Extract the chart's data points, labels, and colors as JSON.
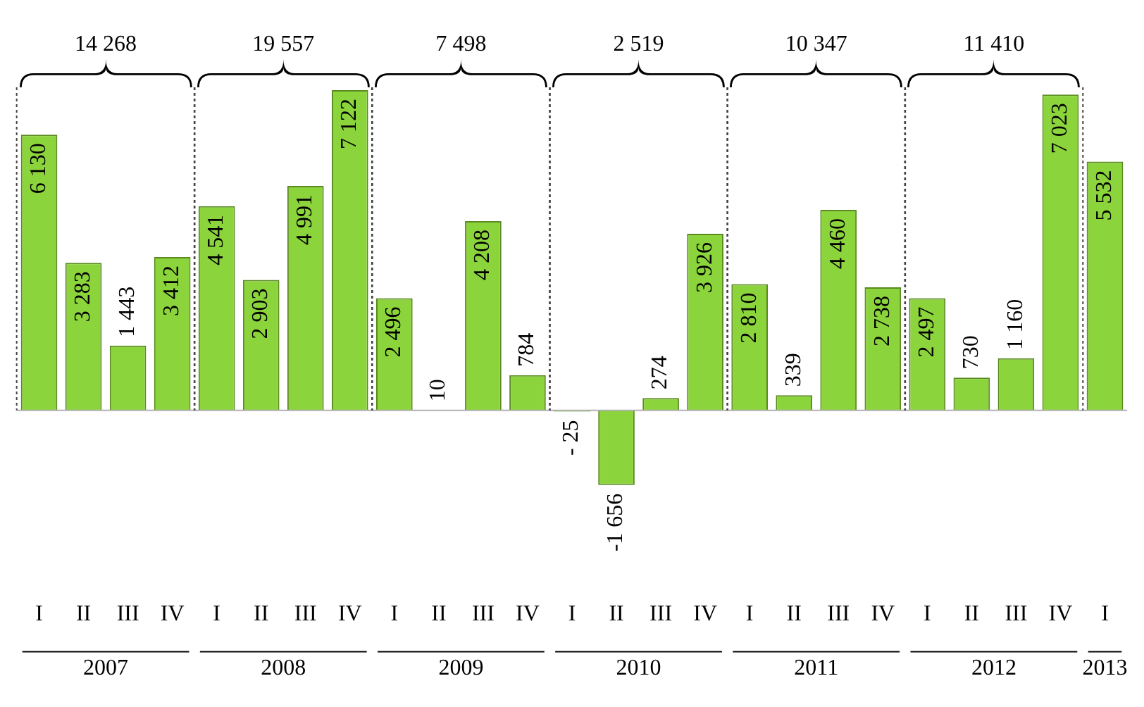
{
  "chart_data": {
    "type": "bar",
    "categories": [
      "I",
      "II",
      "III",
      "IV",
      "I",
      "II",
      "III",
      "IV",
      "I",
      "II",
      "III",
      "IV",
      "I",
      "II",
      "III",
      "IV",
      "I",
      "II",
      "III",
      "IV",
      "I",
      "II",
      "III",
      "IV",
      "I"
    ],
    "values": [
      6130,
      3283,
      1443,
      3412,
      4541,
      2903,
      4991,
      7122,
      2496,
      10,
      4208,
      784,
      -25,
      -1656,
      274,
      3926,
      2810,
      339,
      4460,
      2738,
      2497,
      730,
      1160,
      7023,
      5532
    ],
    "value_labels": [
      "6 130",
      "3 283",
      "1 443",
      "3 412",
      "4 541",
      "2 903",
      "4 991",
      "7 122",
      "2 496",
      "10",
      "4 208",
      "784",
      "- 25",
      "-1 656",
      "274",
      "3 926",
      "2 810",
      "339",
      "4 460",
      "2 738",
      "2 497",
      "730",
      "1 160",
      "7 023",
      "5 532"
    ],
    "color": "#8cd43c",
    "grid": false,
    "legend": false,
    "annotations": [
      "2007",
      "2008",
      "2009",
      "2010",
      "2011",
      "2012",
      "2013",
      "14 268",
      "19 557",
      "7 498",
      "2 519",
      "10 347",
      "11 410"
    ]
  }
}
